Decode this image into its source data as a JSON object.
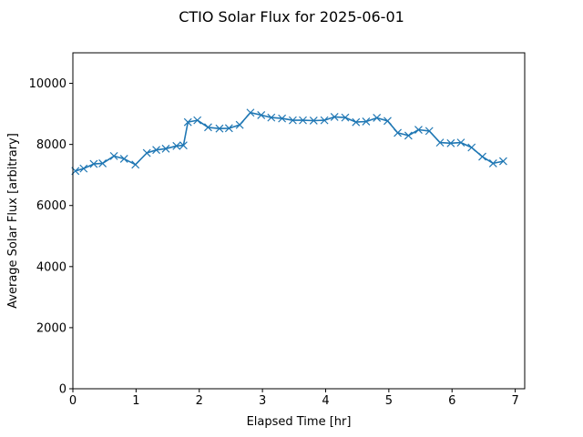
{
  "chart_data": {
    "type": "line",
    "title": "CTIO Solar Flux for 2025-06-01",
    "xlabel": "Elapsed Time [hr]",
    "ylabel": "Average Solar Flux [arbitrary]",
    "xlim": [
      0,
      7.15
    ],
    "ylim": [
      0,
      11000
    ],
    "xticks": [
      0,
      1,
      2,
      3,
      4,
      5,
      6,
      7
    ],
    "yticks": [
      0,
      2000,
      4000,
      6000,
      8000,
      10000
    ],
    "xtick_labels": [
      "0",
      "1",
      "2",
      "3",
      "4",
      "5",
      "6",
      "7"
    ],
    "ytick_labels": [
      "0",
      "2000",
      "4000",
      "6000",
      "8000",
      "10000"
    ],
    "grid": false,
    "marker": "x",
    "color": "#1f77b4",
    "series": [
      {
        "x": [
          0.04,
          0.17,
          0.33,
          0.47,
          0.65,
          0.81,
          0.99,
          1.17,
          1.32,
          1.47,
          1.64,
          1.75,
          1.82,
          1.97,
          2.14,
          2.32,
          2.47,
          2.64,
          2.81,
          2.98,
          3.14,
          3.31,
          3.48,
          3.64,
          3.81,
          3.98,
          4.14,
          4.31,
          4.48,
          4.64,
          4.81,
          4.98,
          5.14,
          5.31,
          5.47,
          5.64,
          5.81,
          5.98,
          6.14,
          6.31,
          6.48,
          6.65,
          6.81
        ],
        "y": [
          7130,
          7210,
          7360,
          7380,
          7620,
          7530,
          7340,
          7720,
          7820,
          7860,
          7950,
          7970,
          8730,
          8790,
          8560,
          8520,
          8530,
          8640,
          9040,
          8960,
          8880,
          8850,
          8790,
          8790,
          8780,
          8790,
          8900,
          8880,
          8730,
          8750,
          8870,
          8770,
          8380,
          8290,
          8480,
          8440,
          8060,
          8040,
          8060,
          7900,
          7600,
          7380,
          7450
        ]
      }
    ]
  }
}
